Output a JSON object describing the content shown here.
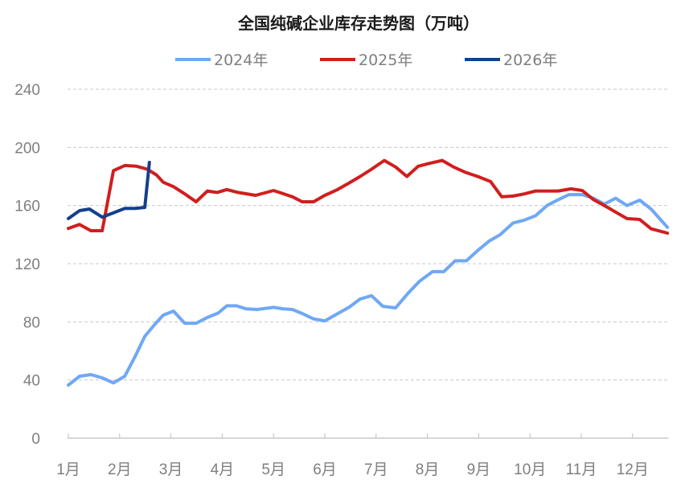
{
  "chart_data": {
    "type": "line",
    "title": "全国纯碱企业库存走势图（万吨）",
    "xlabel": "",
    "ylabel": "",
    "ylim": [
      0,
      240
    ],
    "xlim": [
      1,
      12.7
    ],
    "yticks": [
      "0",
      "40",
      "80",
      "120",
      "160",
      "200",
      "240"
    ],
    "xticks": [
      "1月",
      "2月",
      "3月",
      "4月",
      "5月",
      "6月",
      "7月",
      "8月",
      "9月",
      "10月",
      "11月",
      "12月"
    ],
    "grid": true,
    "legend_position": "top",
    "series": [
      {
        "name": "2024年",
        "color": "#6fa8f5",
        "x": [
          1.0,
          1.22,
          1.44,
          1.66,
          1.88,
          2.1,
          2.3,
          2.49,
          2.68,
          2.85,
          3.05,
          3.27,
          3.49,
          3.71,
          3.92,
          4.09,
          4.28,
          4.46,
          4.68,
          5.0,
          5.18,
          5.37,
          5.56,
          5.78,
          6.0,
          6.22,
          6.47,
          6.69,
          6.91,
          7.13,
          7.38,
          7.63,
          7.85,
          8.1,
          8.32,
          8.54,
          8.76,
          8.98,
          9.2,
          9.42,
          9.67,
          9.89,
          10.11,
          10.33,
          10.55,
          10.76,
          11.02,
          11.24,
          11.45,
          11.67,
          11.89,
          12.14,
          12.36,
          12.68
        ],
        "values": [
          36.5,
          42.6,
          43.7,
          41.5,
          38,
          42.6,
          56,
          70,
          78,
          84.6,
          87.4,
          79,
          79,
          83,
          86,
          91,
          91,
          89,
          88.5,
          90,
          89,
          88.5,
          85.7,
          82,
          80.7,
          85,
          90,
          95.7,
          98,
          90.7,
          89.6,
          100,
          108,
          114.5,
          114.5,
          122,
          122,
          129,
          135.5,
          140,
          148,
          150,
          153,
          160,
          164,
          167.5,
          167.5,
          165,
          161,
          165,
          160,
          163.7,
          157.6,
          145
        ]
      },
      {
        "name": "2025年",
        "color": "#d11e1e",
        "x": [
          1.0,
          1.22,
          1.44,
          1.66,
          1.88,
          2.1,
          2.33,
          2.54,
          2.72,
          2.85,
          3.05,
          3.27,
          3.49,
          3.71,
          3.9,
          4.09,
          4.31,
          4.65,
          5.0,
          5.15,
          5.37,
          5.56,
          5.78,
          6.0,
          6.25,
          6.47,
          6.69,
          6.91,
          7.16,
          7.38,
          7.6,
          7.82,
          8.04,
          8.29,
          8.51,
          8.73,
          8.98,
          9.23,
          9.45,
          9.67,
          9.89,
          10.11,
          10.55,
          10.8,
          11.02,
          11.24,
          11.45,
          11.67,
          11.89,
          12.14,
          12.36,
          12.68
        ],
        "values": [
          144.3,
          147,
          142.7,
          142.7,
          184,
          187.5,
          187,
          185,
          181,
          176,
          173,
          168,
          162.6,
          170,
          169,
          171,
          169,
          167,
          170.3,
          168.6,
          166,
          162.6,
          162.6,
          167,
          171,
          175.4,
          180,
          185,
          191,
          186.5,
          180,
          187,
          189,
          191,
          186.5,
          183,
          180,
          176.5,
          166,
          166.5,
          168,
          170,
          170,
          171.5,
          170.3,
          164,
          160,
          155.5,
          151,
          150.4,
          144,
          141
        ]
      },
      {
        "name": "2026年",
        "color": "#143f8c",
        "x": [
          1.0,
          1.22,
          1.41,
          1.66,
          1.88,
          2.1,
          2.3,
          2.49,
          2.58
        ],
        "values": [
          151,
          156.5,
          157.6,
          152,
          155,
          158,
          158,
          158.7,
          189.7
        ]
      }
    ]
  }
}
